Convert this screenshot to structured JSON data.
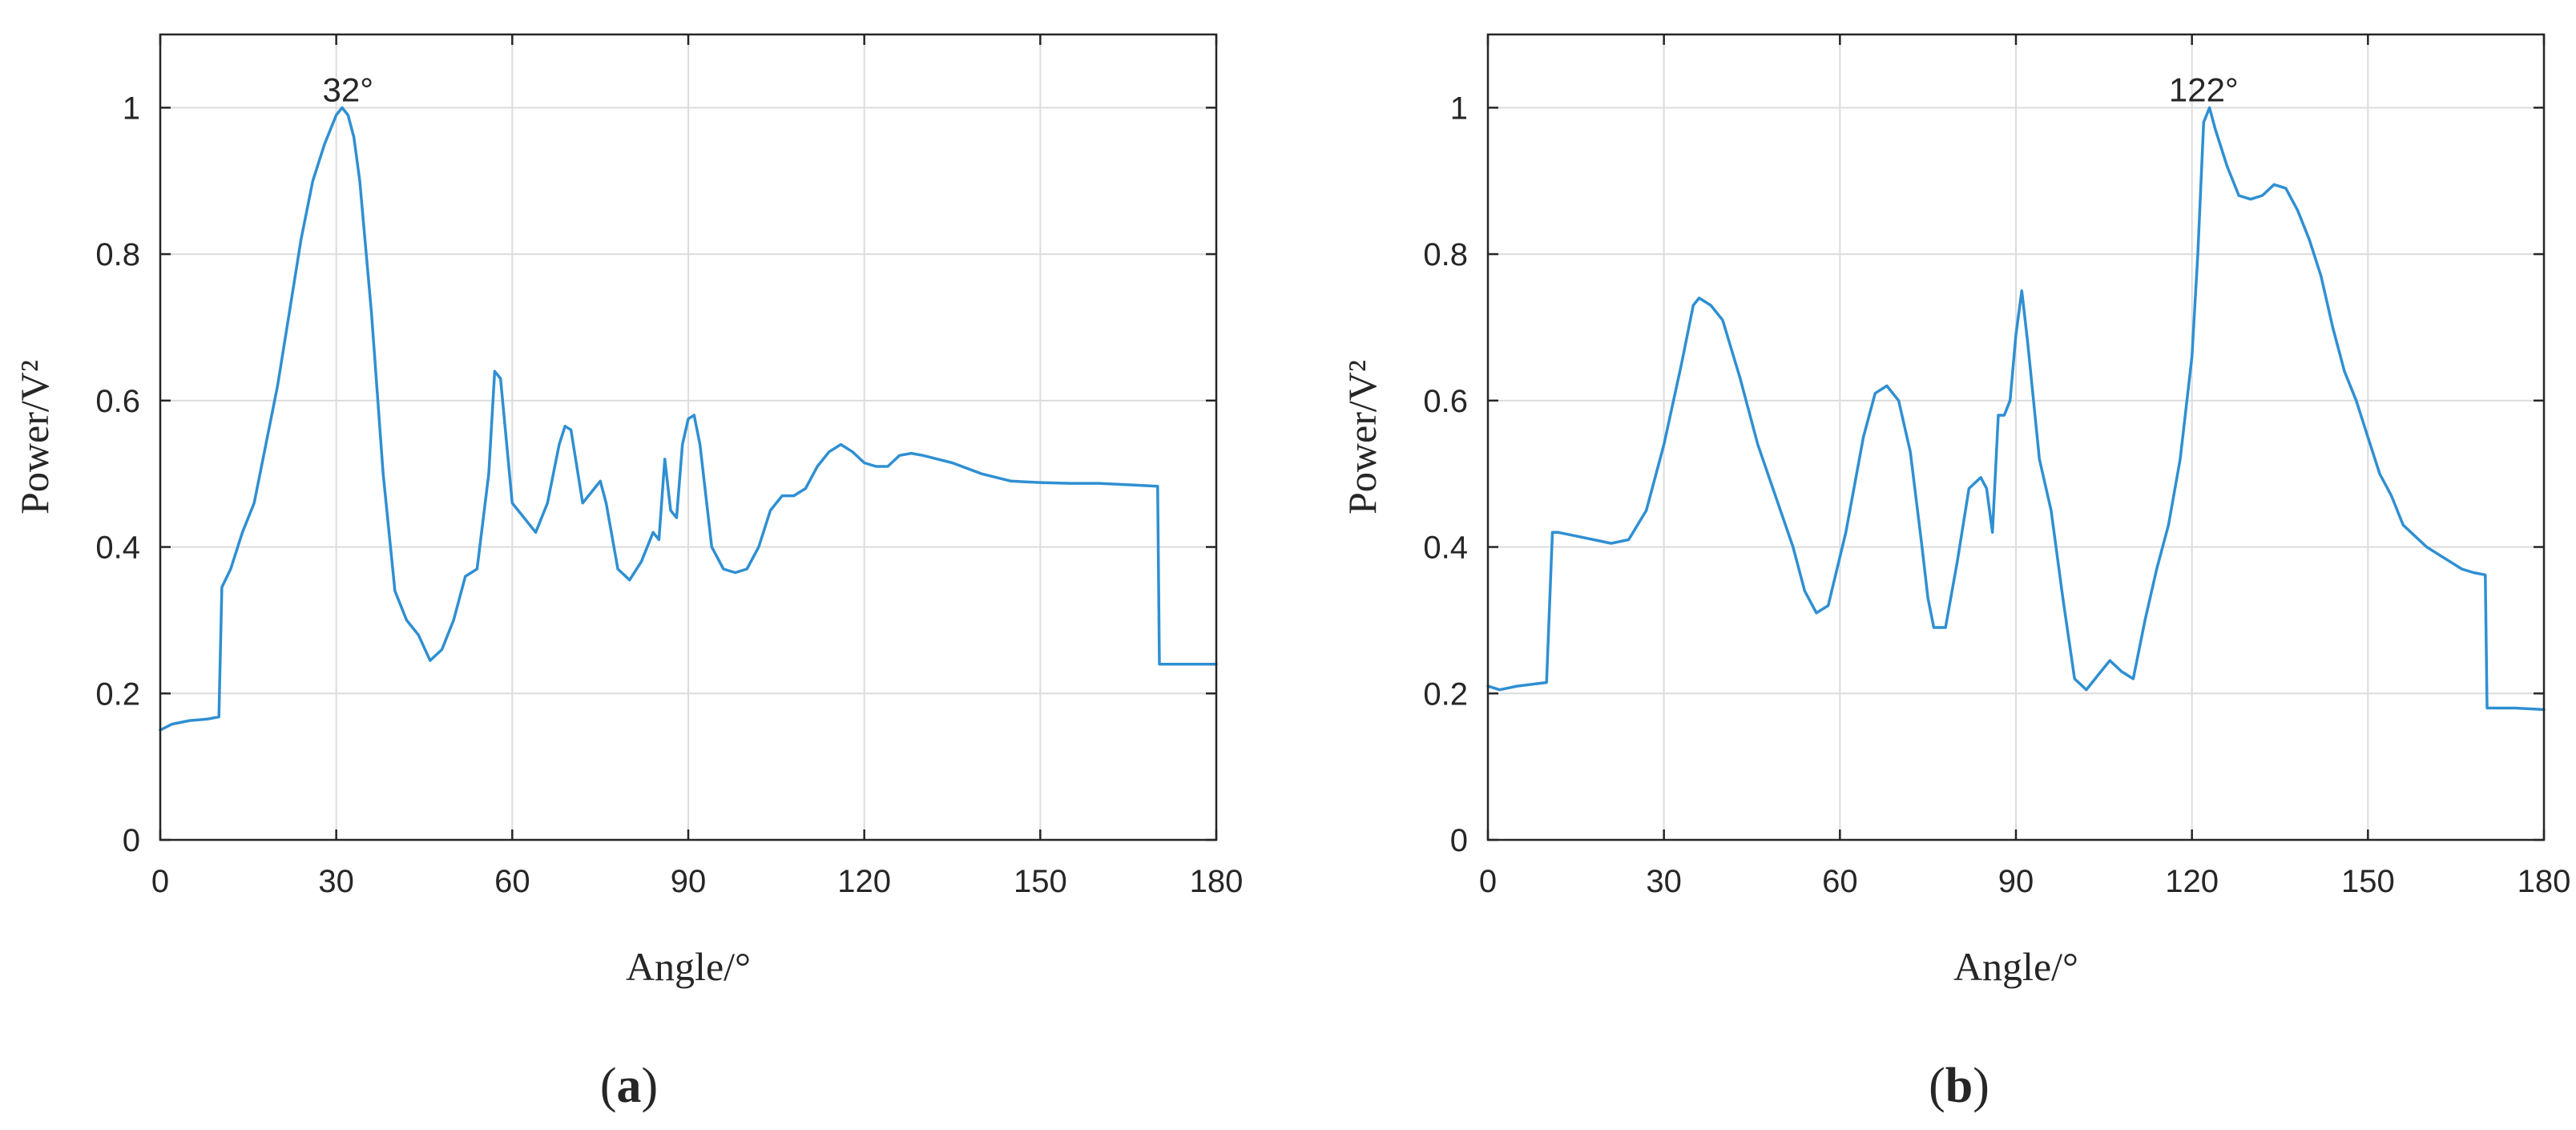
{
  "chart_data": [
    {
      "type": "line",
      "panel_label": "a",
      "xlabel": "Angle/°",
      "ylabel": "Power/V²",
      "xlim": [
        0,
        180
      ],
      "ylim": [
        0,
        1.1
      ],
      "xticks": [
        "0",
        "30",
        "60",
        "90",
        "120",
        "150",
        "180"
      ],
      "yticks": [
        "0",
        "0.2",
        "0.4",
        "0.6",
        "0.8",
        "1"
      ],
      "grid": true,
      "line_color": "#2f8fd2",
      "annotation": {
        "text": "32°",
        "x": 32,
        "y": 1.0
      },
      "series": [
        {
          "x": [
            0,
            2,
            5,
            8,
            10,
            10.5,
            12,
            14,
            16,
            18,
            20,
            22,
            24,
            26,
            28,
            30,
            31,
            32,
            33,
            34,
            36,
            38,
            40,
            42,
            44,
            46,
            48,
            50,
            52,
            54,
            56,
            57,
            58,
            60,
            62,
            64,
            66,
            68,
            69,
            70,
            72,
            74,
            75,
            76,
            78,
            80,
            82,
            84,
            85,
            86,
            87,
            88,
            89,
            90,
            91,
            92,
            94,
            96,
            98,
            100,
            102,
            104,
            106,
            108,
            110,
            112,
            114,
            116,
            118,
            120,
            122,
            124,
            126,
            128,
            130,
            135,
            140,
            145,
            150,
            155,
            160,
            165,
            170,
            170.3,
            175,
            180
          ],
          "y": [
            0.15,
            0.158,
            0.163,
            0.165,
            0.168,
            0.345,
            0.37,
            0.42,
            0.46,
            0.54,
            0.62,
            0.72,
            0.82,
            0.9,
            0.95,
            0.99,
            1.0,
            0.99,
            0.96,
            0.9,
            0.72,
            0.5,
            0.34,
            0.3,
            0.28,
            0.245,
            0.26,
            0.3,
            0.36,
            0.37,
            0.5,
            0.64,
            0.63,
            0.46,
            0.44,
            0.42,
            0.46,
            0.54,
            0.565,
            0.56,
            0.46,
            0.48,
            0.49,
            0.46,
            0.37,
            0.355,
            0.38,
            0.42,
            0.41,
            0.52,
            0.45,
            0.44,
            0.54,
            0.575,
            0.58,
            0.54,
            0.4,
            0.37,
            0.365,
            0.37,
            0.4,
            0.45,
            0.47,
            0.47,
            0.48,
            0.51,
            0.53,
            0.54,
            0.53,
            0.515,
            0.51,
            0.51,
            0.525,
            0.528,
            0.525,
            0.515,
            0.5,
            0.49,
            0.488,
            0.487,
            0.487,
            0.485,
            0.483,
            0.24,
            0.24,
            0.24
          ]
        }
      ]
    },
    {
      "type": "line",
      "panel_label": "b",
      "xlabel": "Angle/°",
      "ylabel": "Power/V²",
      "xlim": [
        0,
        180
      ],
      "ylim": [
        0,
        1.1
      ],
      "xticks": [
        "0",
        "30",
        "60",
        "90",
        "120",
        "150",
        "180"
      ],
      "yticks": [
        "0",
        "0.2",
        "0.4",
        "0.6",
        "0.8",
        "1"
      ],
      "grid": true,
      "line_color": "#2f8fd2",
      "annotation": {
        "text": "122°",
        "x": 122,
        "y": 1.0
      },
      "series": [
        {
          "x": [
            0,
            2,
            5,
            8,
            10,
            11,
            12,
            15,
            18,
            21,
            24,
            27,
            30,
            33,
            35,
            36,
            38,
            40,
            43,
            46,
            49,
            52,
            54,
            56,
            58,
            61,
            64,
            66,
            68,
            70,
            72,
            74,
            75,
            76,
            78,
            80,
            82,
            84,
            85,
            86,
            87,
            88,
            89,
            90,
            91,
            92,
            94,
            96,
            98,
            100,
            102,
            104,
            106,
            108,
            110,
            112,
            114,
            116,
            118,
            120,
            121,
            122,
            123,
            124,
            126,
            128,
            130,
            132,
            134,
            136,
            138,
            140,
            142,
            144,
            146,
            148,
            150,
            152,
            154,
            156,
            158,
            160,
            162,
            164,
            166,
            168,
            170,
            170.3,
            172,
            175,
            180
          ],
          "y": [
            0.21,
            0.205,
            0.21,
            0.213,
            0.215,
            0.42,
            0.42,
            0.415,
            0.41,
            0.405,
            0.41,
            0.45,
            0.54,
            0.65,
            0.73,
            0.74,
            0.73,
            0.71,
            0.63,
            0.54,
            0.47,
            0.4,
            0.34,
            0.31,
            0.32,
            0.42,
            0.55,
            0.61,
            0.62,
            0.6,
            0.53,
            0.4,
            0.33,
            0.29,
            0.29,
            0.38,
            0.48,
            0.495,
            0.48,
            0.42,
            0.58,
            0.58,
            0.6,
            0.69,
            0.75,
            0.68,
            0.52,
            0.45,
            0.33,
            0.22,
            0.205,
            0.225,
            0.245,
            0.23,
            0.22,
            0.3,
            0.37,
            0.43,
            0.52,
            0.66,
            0.8,
            0.98,
            1.0,
            0.97,
            0.92,
            0.88,
            0.875,
            0.88,
            0.895,
            0.89,
            0.86,
            0.82,
            0.77,
            0.7,
            0.64,
            0.6,
            0.55,
            0.5,
            0.47,
            0.43,
            0.415,
            0.4,
            0.39,
            0.38,
            0.37,
            0.365,
            0.362,
            0.18,
            0.18,
            0.18,
            0.178
          ]
        }
      ]
    }
  ]
}
